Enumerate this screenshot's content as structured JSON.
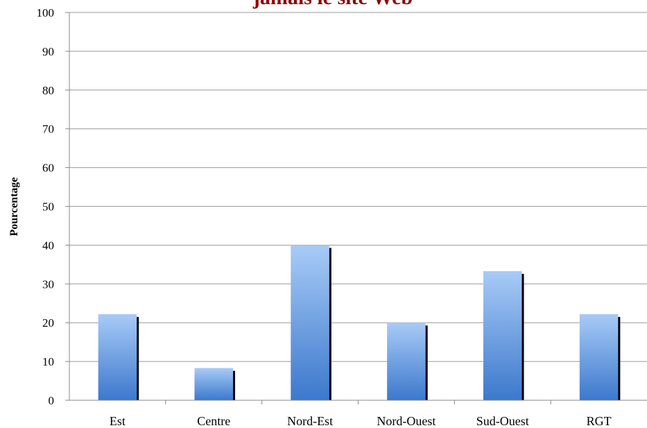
{
  "chart_data": {
    "type": "bar",
    "title": "jamais le site Web",
    "xlabel": "",
    "ylabel": "Pourcentage",
    "ylim": [
      0,
      100
    ],
    "yticks": [
      0,
      10,
      20,
      30,
      40,
      50,
      60,
      70,
      80,
      90,
      100
    ],
    "categories": [
      "Est",
      "Centre",
      "Nord-Est",
      "Nord-Ouest",
      "Sud-Ouest",
      "RGT"
    ],
    "values": [
      22.2,
      8.3,
      40,
      20,
      33.3,
      22.2
    ],
    "grid": true,
    "legend": "none",
    "colors": {
      "bar_top": "#a8cbf7",
      "bar_bottom": "#3c78cc",
      "shadow": "#000000",
      "title": "#8b0a0a",
      "grid": "#999999"
    }
  }
}
